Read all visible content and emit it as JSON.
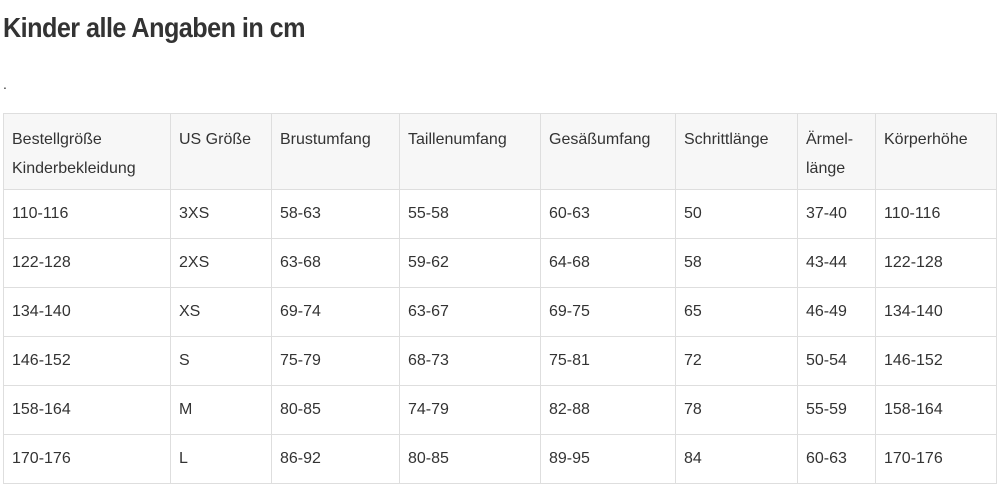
{
  "header": {
    "title": "Kinder alle Angaben in cm",
    "note": "."
  },
  "table": {
    "headers": [
      [
        "Bestellgröße",
        "Kinderbekleidung"
      ],
      [
        "US Größe"
      ],
      [
        "Brustumfang"
      ],
      [
        "Taillenumfang"
      ],
      [
        "Gesäßumfang"
      ],
      [
        "Schrittlänge"
      ],
      [
        "Ärmel-",
        "länge"
      ],
      [
        "Körperhöhe"
      ]
    ],
    "rows": [
      [
        "110-116",
        "3XS",
        "58-63",
        "55-58",
        "60-63",
        "50",
        "37-40",
        "110-116"
      ],
      [
        "122-128",
        "2XS",
        "63-68",
        "59-62",
        "64-68",
        "58",
        "43-44",
        "122-128"
      ],
      [
        "134-140",
        "XS",
        "69-74",
        "63-67",
        "69-75",
        "65",
        "46-49",
        "134-140"
      ],
      [
        "146-152",
        "S",
        "75-79",
        "68-73",
        "75-81",
        "72",
        "50-54",
        "146-152"
      ],
      [
        "158-164",
        "M",
        "80-85",
        "74-79",
        "82-88",
        "78",
        "55-59",
        "158-164"
      ],
      [
        "170-176",
        "L",
        "86-92",
        "80-85",
        "89-95",
        "84",
        "60-63",
        "170-176"
      ]
    ]
  }
}
